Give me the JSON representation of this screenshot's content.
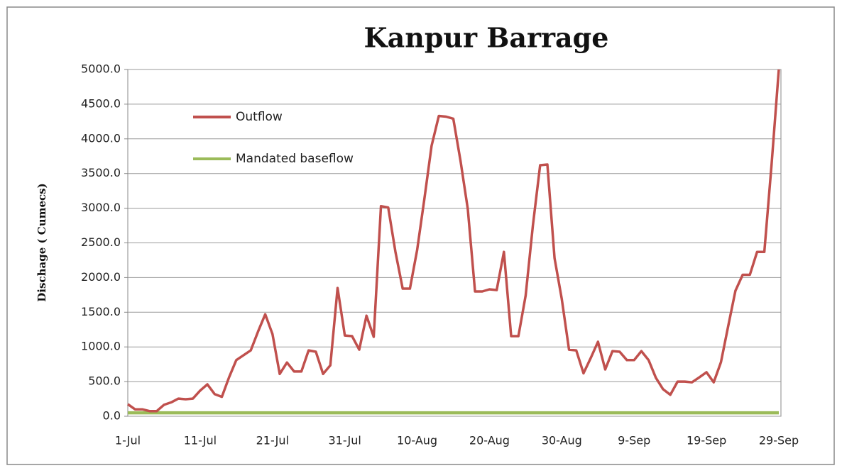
{
  "chart_data": {
    "type": "line",
    "title": "Kanpur Barrage",
    "y_label": "Dischage ( Cumecs)",
    "categories": [
      "1-Jul",
      null,
      null,
      null,
      null,
      null,
      null,
      null,
      null,
      null,
      "11-Jul",
      null,
      null,
      null,
      null,
      null,
      null,
      null,
      null,
      null,
      "21-Jul",
      null,
      null,
      null,
      null,
      null,
      null,
      null,
      null,
      null,
      "31-Jul",
      null,
      null,
      null,
      null,
      null,
      null,
      null,
      null,
      null,
      "10-Aug",
      null,
      null,
      null,
      null,
      null,
      null,
      null,
      null,
      null,
      "20-Aug",
      null,
      null,
      null,
      null,
      null,
      null,
      null,
      null,
      null,
      "30-Aug",
      null,
      null,
      null,
      null,
      null,
      null,
      null,
      null,
      null,
      "9-Sep",
      null,
      null,
      null,
      null,
      null,
      null,
      null,
      null,
      null,
      "19-Sep",
      null,
      null,
      null,
      null,
      null,
      null,
      null,
      null,
      null,
      "29-Sep"
    ],
    "series": [
      {
        "name": "Outflow",
        "color": "#c0504d",
        "values": [
          175,
          100,
          100,
          75,
          75,
          165,
          200,
          255,
          245,
          255,
          370,
          460,
          320,
          280,
          560,
          810,
          880,
          950,
          1220,
          1470,
          1185,
          610,
          775,
          645,
          645,
          950,
          930,
          610,
          735,
          1850,
          1165,
          1155,
          960,
          1450,
          1145,
          3030,
          3010,
          2370,
          1840,
          1840,
          2400,
          3130,
          3900,
          4330,
          4320,
          4290,
          3680,
          2990,
          1800,
          1800,
          1830,
          1820,
          2370,
          1155,
          1155,
          1740,
          2750,
          3620,
          3630,
          2280,
          1690,
          960,
          950,
          620,
          840,
          1075,
          675,
          940,
          930,
          810,
          810,
          940,
          810,
          555,
          390,
          310,
          500,
          500,
          490,
          560,
          635,
          490,
          780,
          1300,
          1810,
          2040,
          2040,
          2370,
          2370,
          3630,
          5000
        ]
      },
      {
        "name": "Mandated baseflow",
        "color": "#9bbb59",
        "values": [
          50,
          50,
          50,
          50,
          50,
          50,
          50,
          50,
          50,
          50,
          50,
          50,
          50,
          50,
          50,
          50,
          50,
          50,
          50,
          50,
          50,
          50,
          50,
          50,
          50,
          50,
          50,
          50,
          50,
          50,
          50,
          50,
          50,
          50,
          50,
          50,
          50,
          50,
          50,
          50,
          50,
          50,
          50,
          50,
          50,
          50,
          50,
          50,
          50,
          50,
          50,
          50,
          50,
          50,
          50,
          50,
          50,
          50,
          50,
          50,
          50,
          50,
          50,
          50,
          50,
          50,
          50,
          50,
          50,
          50,
          50,
          50,
          50,
          50,
          50,
          50,
          50,
          50,
          50,
          50,
          50,
          50,
          50,
          50,
          50,
          50,
          50,
          50,
          50,
          50,
          50
        ]
      }
    ],
    "ylim": [
      0,
      5000
    ],
    "yticks": [
      {
        "value": 0,
        "label": "0.0"
      },
      {
        "value": 500,
        "label": "500.0"
      },
      {
        "value": 1000,
        "label": "1000.0"
      },
      {
        "value": 1500,
        "label": "1500.0"
      },
      {
        "value": 2000,
        "label": "2000.0"
      },
      {
        "value": 2500,
        "label": "2500.0"
      },
      {
        "value": 3000,
        "label": "3000.0"
      },
      {
        "value": 3500,
        "label": "3500.0"
      },
      {
        "value": 4000,
        "label": "4000.0"
      },
      {
        "value": 4500,
        "label": "4500.0"
      },
      {
        "value": 5000,
        "label": "5000.0"
      }
    ],
    "grid": true,
    "legend": "upper left"
  }
}
